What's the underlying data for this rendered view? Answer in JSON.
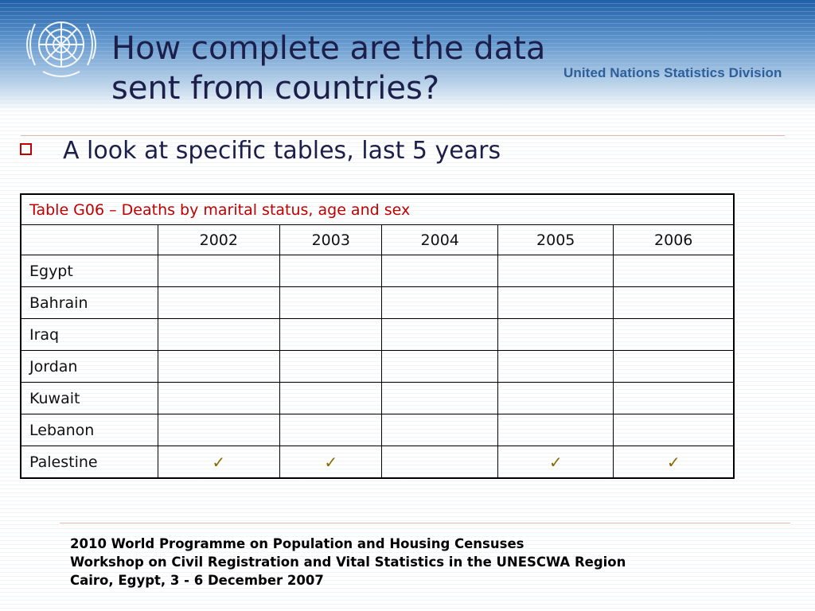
{
  "slide": {
    "title_line1": "How complete are the data",
    "title_line2": "sent from countries?",
    "organization": "United Nations Statistics Division"
  },
  "bullet": {
    "text": "A look at specific tables, last 5 years"
  },
  "table": {
    "caption": "Table G06 – Deaths by marital status, age and sex",
    "years": [
      "2002",
      "2003",
      "2004",
      "2005",
      "2006"
    ],
    "rows": [
      {
        "country": "Egypt",
        "marks": [
          "",
          "",
          "",
          "",
          ""
        ]
      },
      {
        "country": "Bahrain",
        "marks": [
          "",
          "",
          "",
          "",
          ""
        ]
      },
      {
        "country": "Iraq",
        "marks": [
          "",
          "",
          "",
          "",
          ""
        ]
      },
      {
        "country": "Jordan",
        "marks": [
          "",
          "",
          "",
          "",
          ""
        ]
      },
      {
        "country": "Kuwait",
        "marks": [
          "",
          "",
          "",
          "",
          ""
        ]
      },
      {
        "country": "Lebanon",
        "marks": [
          "",
          "",
          "",
          "",
          ""
        ]
      },
      {
        "country": "Palestine",
        "marks": [
          "✓",
          "✓",
          "",
          "✓",
          "✓"
        ]
      }
    ],
    "check_color": "#8a6a00",
    "caption_color": "#c00000"
  },
  "footer": {
    "line1": "2010 World Programme on Population and Housing Censuses",
    "line2": "Workshop on Civil Registration and Vital Statistics in the UNESCWA Region",
    "line3": "Cairo, Egypt, 3 - 6 December 2007"
  }
}
